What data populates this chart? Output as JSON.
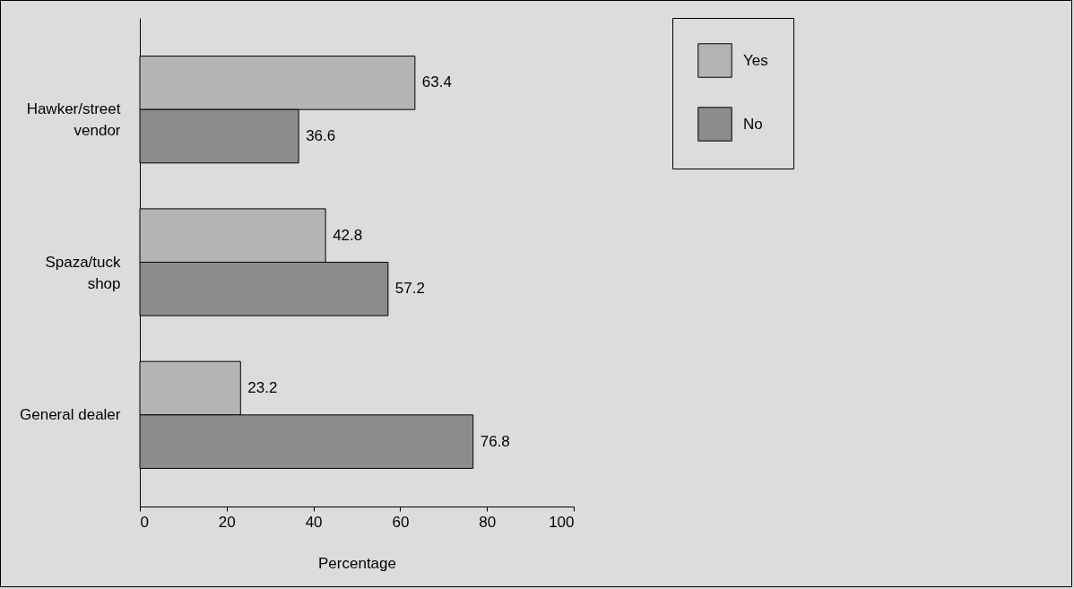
{
  "chart_data": {
    "type": "bar",
    "orientation": "horizontal",
    "xlabel": "Percentage",
    "categories": [
      "Hawker/street vendor",
      "Spaza/tuck shop",
      "General dealer"
    ],
    "series": [
      {
        "name": "Yes",
        "color": "#b4b4b4",
        "values": [
          63.4,
          42.8,
          23.2
        ]
      },
      {
        "name": "No",
        "color": "#8c8c8c",
        "values": [
          36.6,
          57.2,
          76.8
        ]
      }
    ],
    "xlim": [
      0,
      100
    ],
    "xticks": [
      0,
      20,
      40,
      60,
      80,
      100
    ],
    "legend": "right",
    "data_labels": true
  }
}
